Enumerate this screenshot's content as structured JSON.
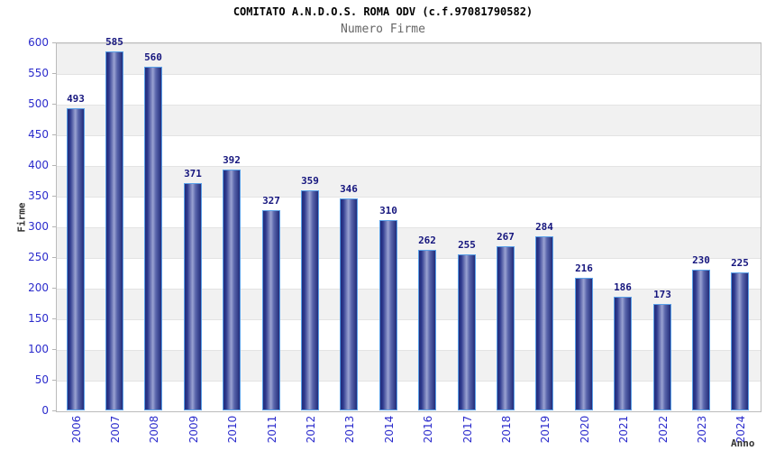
{
  "chart_data": {
    "type": "bar",
    "title": "COMITATO A.N.D.O.S. ROMA ODV (c.f.97081790582)",
    "subtitle": "Numero Firme",
    "xlabel": "Anno",
    "ylabel": "Firme",
    "categories": [
      "2006",
      "2007",
      "2008",
      "2009",
      "2010",
      "2011",
      "2012",
      "2013",
      "2014",
      "2016",
      "2017",
      "2018",
      "2019",
      "2020",
      "2021",
      "2022",
      "2023",
      "2024"
    ],
    "values": [
      493,
      585,
      560,
      371,
      392,
      327,
      359,
      346,
      310,
      262,
      255,
      267,
      284,
      216,
      186,
      173,
      230,
      225
    ],
    "ylim": [
      0,
      600
    ],
    "ytick_step": 50,
    "grid": "horizontal-bands-alternating",
    "legend": "none",
    "colors": {
      "bar_edge_dark": "#222c7a",
      "bar_center_light": "#9aa2d2",
      "bar_border": "#5aa0e8",
      "value_label": "#16167e",
      "axis_tick_text": "#2b2bcc",
      "band_gray": "#f1f1f1",
      "band_white": "#ffffff",
      "subtitle_text": "#666666",
      "axis_title_text": "#333333",
      "plot_border": "#bbbbbb"
    }
  }
}
